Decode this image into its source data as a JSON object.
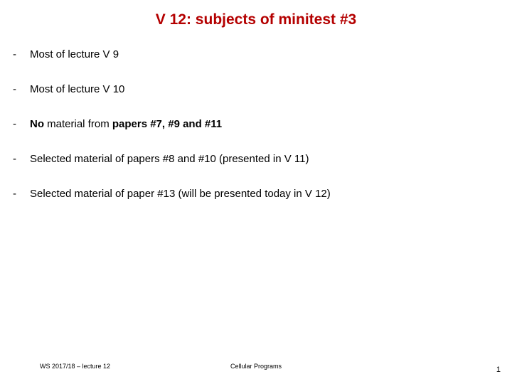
{
  "title": "V 12: subjects of minitest #3",
  "items": [
    {
      "html": "Most of lecture V 9"
    },
    {
      "html": "Most of lecture V 10"
    },
    {
      "html": "<strong>No</strong> material from <strong>papers #7, #9 and #11</strong>"
    },
    {
      "html": "Selected material of papers #8 and #10 (presented in V 11)"
    },
    {
      "html": "Selected material of paper #13 (will be presented today in V 12)"
    }
  ],
  "footer": {
    "left": "WS 2017/18 – lecture 12",
    "center": "Cellular Programs",
    "page": "1"
  },
  "colors": {
    "title": "#b40000",
    "text": "#000000",
    "background": "#ffffff"
  }
}
